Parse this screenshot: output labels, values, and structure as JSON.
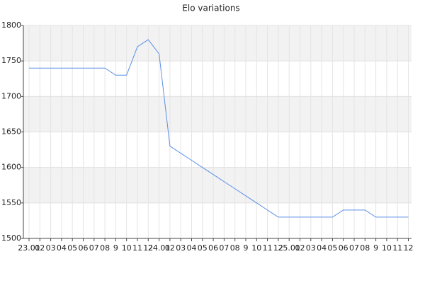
{
  "chart_data": {
    "type": "line",
    "title": "Elo variations",
    "categories": [
      "23.01",
      "02",
      "03",
      "04",
      "05",
      "06",
      "07",
      "08",
      "9",
      "10",
      "11",
      "12",
      "24.01",
      "02",
      "03",
      "04",
      "05",
      "06",
      "07",
      "08",
      "9",
      "10",
      "11",
      "12",
      "25.01",
      "02",
      "03",
      "04",
      "05",
      "06",
      "07",
      "08",
      "9",
      "10",
      "11",
      "12"
    ],
    "series": [
      {
        "name": "Elo",
        "color": "#5b8ee6",
        "values": [
          1740,
          1740,
          1740,
          1740,
          1740,
          1740,
          1740,
          1740,
          1730,
          1730,
          1770,
          1780,
          1760,
          1630,
          1620,
          1610,
          1600,
          1590,
          1580,
          1570,
          1560,
          1550,
          1540,
          1530,
          1530,
          1530,
          1530,
          1530,
          1530,
          1540,
          1540,
          1540,
          1530,
          1530,
          1530,
          1530
        ]
      }
    ],
    "ylim": [
      1500,
      1800
    ],
    "yticks": [
      1500,
      1550,
      1600,
      1650,
      1700,
      1750,
      1800
    ],
    "grid": true
  }
}
